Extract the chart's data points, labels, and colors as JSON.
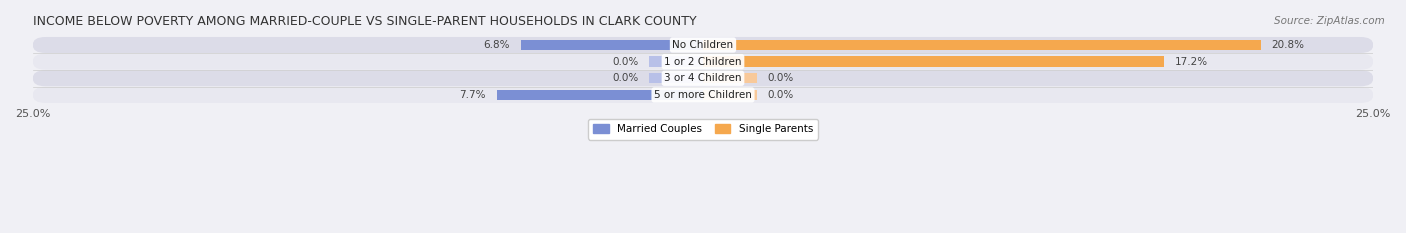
{
  "title": "INCOME BELOW POVERTY AMONG MARRIED-COUPLE VS SINGLE-PARENT HOUSEHOLDS IN CLARK COUNTY",
  "source": "Source: ZipAtlas.com",
  "categories": [
    "No Children",
    "1 or 2 Children",
    "3 or 4 Children",
    "5 or more Children"
  ],
  "married_values": [
    6.8,
    0.0,
    0.0,
    7.7
  ],
  "single_values": [
    20.8,
    17.2,
    0.0,
    0.0
  ],
  "married_color": "#7b8fd4",
  "single_color": "#f5a84e",
  "married_color_light": "#b8c0e8",
  "single_color_light": "#f8c99a",
  "married_label": "Married Couples",
  "single_label": "Single Parents",
  "axis_max": 25.0,
  "title_fontsize": 9,
  "label_fontsize": 7.5,
  "tick_fontsize": 8,
  "source_fontsize": 7.5,
  "row_bg": "#e8e8ee",
  "row_alt_bg": "#f0f0f5"
}
